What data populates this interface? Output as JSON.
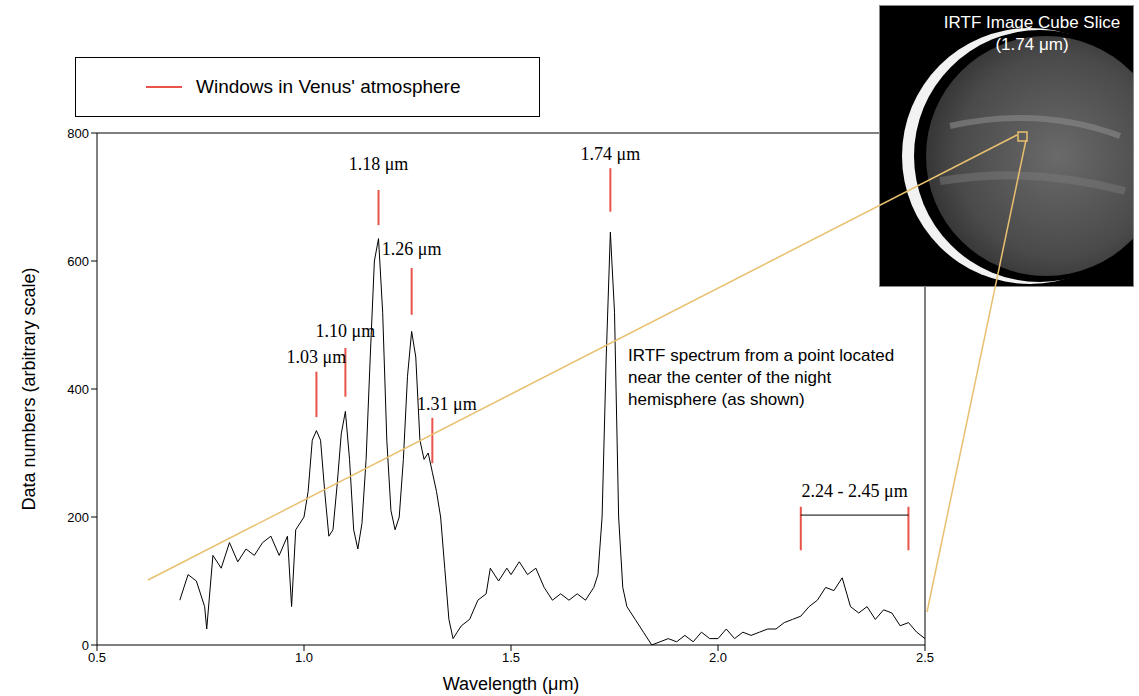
{
  "chart_data": {
    "type": "line",
    "color": "#000000",
    "x_label": "Wavelength (μm)",
    "y_label": "Data numbers (arbitrary scale)",
    "xlim": [
      0.5,
      2.5
    ],
    "xticks": [
      0.5,
      {
        "value": 1.0,
        "label": "1.0"
      },
      1.5,
      {
        "value": 2.0,
        "label": "2.0"
      },
      2.5
    ],
    "ylim": [
      0,
      800
    ],
    "yticks": [
      0,
      200,
      400,
      600,
      800
    ],
    "grid": false,
    "legend": "top-left",
    "legend_label": "Windows in Venus' atmosphere",
    "windows_color": "#e8534a",
    "x": [
      0.7,
      0.72,
      0.74,
      0.76,
      0.765,
      0.78,
      0.8,
      0.82,
      0.84,
      0.86,
      0.88,
      0.9,
      0.92,
      0.94,
      0.96,
      0.97,
      0.98,
      1.0,
      1.01,
      1.02,
      1.03,
      1.04,
      1.05,
      1.06,
      1.07,
      1.08,
      1.09,
      1.1,
      1.11,
      1.12,
      1.13,
      1.14,
      1.15,
      1.16,
      1.17,
      1.18,
      1.19,
      1.2,
      1.21,
      1.22,
      1.23,
      1.24,
      1.25,
      1.26,
      1.27,
      1.28,
      1.29,
      1.3,
      1.31,
      1.32,
      1.33,
      1.34,
      1.35,
      1.36,
      1.37,
      1.38,
      1.4,
      1.42,
      1.44,
      1.45,
      1.47,
      1.49,
      1.5,
      1.52,
      1.54,
      1.56,
      1.58,
      1.6,
      1.62,
      1.64,
      1.66,
      1.68,
      1.7,
      1.71,
      1.72,
      1.73,
      1.74,
      1.75,
      1.76,
      1.77,
      1.78,
      1.8,
      1.82,
      1.84,
      1.86,
      1.88,
      1.9,
      1.92,
      1.94,
      1.96,
      1.98,
      2.0,
      2.02,
      2.04,
      2.06,
      2.08,
      2.1,
      2.12,
      2.14,
      2.16,
      2.18,
      2.2,
      2.22,
      2.24,
      2.26,
      2.28,
      2.3,
      2.32,
      2.34,
      2.36,
      2.38,
      2.4,
      2.42,
      2.44,
      2.46,
      2.48,
      2.5
    ],
    "values": [
      70,
      110,
      100,
      60,
      25,
      140,
      120,
      160,
      130,
      150,
      140,
      160,
      170,
      140,
      170,
      60,
      180,
      200,
      240,
      320,
      335,
      320,
      240,
      170,
      180,
      250,
      330,
      365,
      290,
      180,
      150,
      190,
      290,
      450,
      600,
      635,
      520,
      320,
      210,
      180,
      200,
      290,
      420,
      490,
      450,
      320,
      290,
      300,
      270,
      240,
      200,
      120,
      40,
      10,
      20,
      30,
      40,
      70,
      80,
      120,
      100,
      120,
      110,
      130,
      110,
      120,
      90,
      70,
      80,
      70,
      80,
      70,
      90,
      110,
      200,
      450,
      645,
      520,
      200,
      90,
      60,
      40,
      20,
      0,
      5,
      10,
      5,
      15,
      5,
      20,
      10,
      10,
      25,
      10,
      20,
      15,
      20,
      25,
      25,
      35,
      40,
      45,
      60,
      70,
      90,
      85,
      105,
      60,
      50,
      60,
      40,
      55,
      50,
      30,
      35,
      20,
      10
    ],
    "annotations": [
      {
        "text": "1.03 μm",
        "x": 1.03,
        "y0": 356,
        "y1": 427,
        "label_x": 1.03,
        "label_y": 440
      },
      {
        "text": "1.10 μm",
        "x": 1.1,
        "y0": 388,
        "y1": 464,
        "label_x": 1.1,
        "label_y": 482
      },
      {
        "text": "1.18 μm",
        "x": 1.18,
        "y0": 656,
        "y1": 711,
        "label_x": 1.18,
        "label_y": 742
      },
      {
        "text": "1.26 μm",
        "x": 1.26,
        "y0": 516,
        "y1": 589,
        "label_x": 1.26,
        "label_y": 609
      },
      {
        "text": "1.31 μm",
        "x": 1.31,
        "y0": 284,
        "y1": 355,
        "label_x": 1.345,
        "label_y": 367
      },
      {
        "text": "1.74 μm",
        "x": 1.74,
        "y0": 677,
        "y1": 745,
        "label_x": 1.74,
        "label_y": 758
      }
    ],
    "bracket": {
      "text": "2.24 - 2.45 μm",
      "x_start": 2.2,
      "x_end": 2.46,
      "y0": 148,
      "y1": 216,
      "y_bar": 203,
      "label_x": 2.33,
      "label_y": 231
    },
    "note": "IRTF spectrum from a point located near the center of the night hemisphere (as shown)",
    "inset_title": "IRTF Image Cube Slice (1.74 μm)"
  }
}
